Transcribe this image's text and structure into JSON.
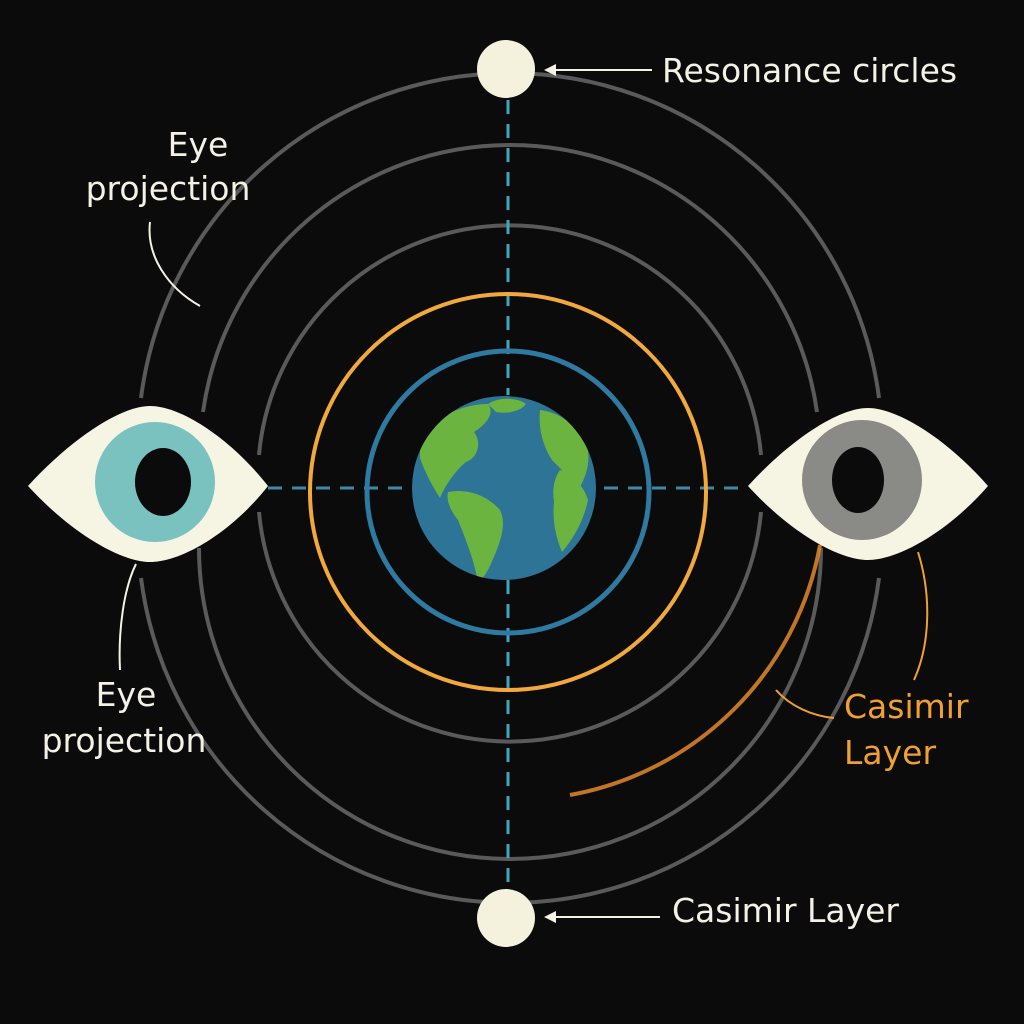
{
  "labels": {
    "top_callout": "Resonance circles",
    "bottom_callout": "Casimir Layer",
    "eye_top_line1": "Eye",
    "eye_top_line2": "projection",
    "eye_bottom_line1": "Eye",
    "eye_bottom_line2": "projection",
    "casimir_right_line1": "Casimir",
    "casimir_right_line2": "Layer"
  },
  "colors": {
    "background": "#0b0b0b",
    "ring_gray": "#5a5a5a",
    "ring_orange": "#f2a93b",
    "ring_blue": "#2f7aa0",
    "axis_teal": "#3fa7bd",
    "label_white": "#f4f2e6",
    "label_orange": "#f0a030",
    "eye_white": "#f6f5e4",
    "left_iris": "#79c2c0",
    "right_iris": "#8a8a86",
    "ocean": "#2d7496",
    "land": "#6bb43f",
    "node_fill": "#f4f2dc"
  },
  "icons": {
    "left_eye": "eye-icon",
    "right_eye": "eye-icon",
    "center": "earth-globe-icon",
    "top_node": "circle-node-icon",
    "bottom_node": "circle-node-icon"
  }
}
